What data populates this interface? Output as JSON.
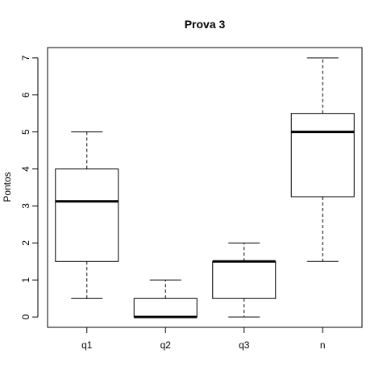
{
  "chart_data": {
    "type": "boxplot",
    "title": "Prova 3",
    "xlabel": "",
    "ylabel": "Pontos",
    "ylim": [
      -0.28,
      7.28
    ],
    "yticks": [
      0,
      1,
      2,
      3,
      4,
      5,
      6,
      7
    ],
    "grid": false,
    "categories": [
      "q1",
      "q2",
      "q3",
      "n"
    ],
    "boxes": [
      {
        "label": "q1",
        "min": 0.5,
        "q1": 1.5,
        "median": 3.125,
        "q3": 4.0,
        "max": 5.0
      },
      {
        "label": "q2",
        "min": 0.0,
        "q1": 0.0,
        "median": 0.0,
        "q3": 0.5,
        "max": 1.0
      },
      {
        "label": "q3",
        "min": 0.0,
        "q1": 0.5,
        "median": 1.5,
        "q3": 1.5,
        "max": 2.0
      },
      {
        "label": "n",
        "min": 1.5,
        "q1": 3.25,
        "median": 5.0,
        "q3": 5.5,
        "max": 7.0
      }
    ]
  }
}
